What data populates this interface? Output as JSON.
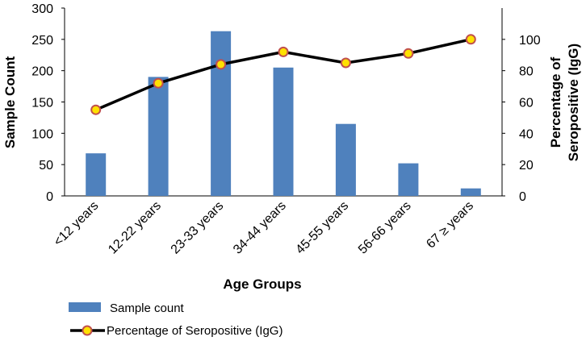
{
  "chart_data": {
    "type": "bar",
    "categories": [
      "<12 years",
      "12-22 years",
      "23-33 years",
      "34-44 years",
      "45-55 years",
      "56-66 years",
      "67 ≥ years"
    ],
    "series": [
      {
        "name": "Sample count",
        "chart": "bar",
        "axis": "left",
        "color": "#4f81bd",
        "values": [
          68,
          190,
          263,
          205,
          115,
          52,
          12
        ]
      },
      {
        "name": "Percentage of Seropositive (IgG)",
        "chart": "line",
        "axis": "right",
        "color": "#000000",
        "marker_fill": "#ffe100",
        "marker_edge": "#c0504d",
        "values": [
          55,
          72,
          84,
          92,
          85,
          91,
          100
        ]
      }
    ],
    "xlabel": "Age Groups",
    "ylabel": "Sample Count",
    "ylabel_right": [
      "Percentage of",
      "Seropositive (IgG)"
    ],
    "ylim": [
      0,
      300
    ],
    "yticks": [
      "0",
      "50",
      "100",
      "150",
      "200",
      "250",
      "300"
    ],
    "ylim_right": [
      0,
      120
    ],
    "yticks_right": [
      "0",
      "20",
      "40",
      "60",
      "80",
      "100"
    ],
    "grid": false,
    "legend": "bottom-left"
  }
}
